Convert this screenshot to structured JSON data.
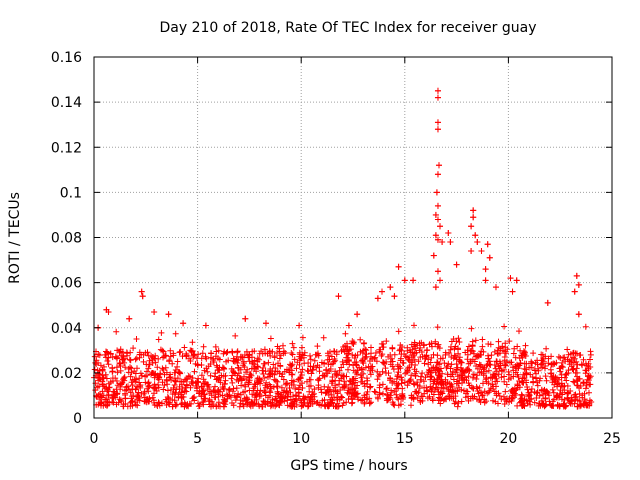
{
  "chart_data": {
    "type": "scatter",
    "title": "Day 210 of 2018, Rate Of TEC Index for receiver guay",
    "xlabel": "GPS time / hours",
    "ylabel": "ROTI / TECUs",
    "xlim": [
      0,
      25
    ],
    "ylim": [
      0,
      0.16
    ],
    "xticks": [
      0,
      5,
      10,
      15,
      20,
      25
    ],
    "yticks": [
      0,
      0.02,
      0.04,
      0.06,
      0.08,
      0.1,
      0.12,
      0.14,
      0.16
    ],
    "xtick_labels": [
      "0",
      "5",
      "10",
      "15",
      "20",
      "25"
    ],
    "ytick_labels": [
      "0",
      "0.02",
      "0.04",
      "0.06",
      "0.08",
      "0.1",
      "0.12",
      "0.14",
      "0.16"
    ],
    "grid": true,
    "marker": "+",
    "color": "#ff0000",
    "series": [
      {
        "name": "ROTI",
        "x_range": [
          0,
          24
        ],
        "typical_range": [
          0.005,
          0.03
        ],
        "points": [
          [
            16.6,
            0.145
          ],
          [
            16.6,
            0.142
          ],
          [
            16.6,
            0.131
          ],
          [
            16.6,
            0.128
          ],
          [
            16.65,
            0.112
          ],
          [
            16.6,
            0.108
          ],
          [
            16.55,
            0.1
          ],
          [
            16.6,
            0.094
          ],
          [
            16.5,
            0.09
          ],
          [
            16.6,
            0.088
          ],
          [
            16.7,
            0.085
          ],
          [
            16.5,
            0.081
          ],
          [
            16.6,
            0.079
          ],
          [
            16.8,
            0.078
          ],
          [
            16.4,
            0.072
          ],
          [
            16.6,
            0.065
          ],
          [
            16.7,
            0.061
          ],
          [
            16.5,
            0.058
          ],
          [
            18.3,
            0.092
          ],
          [
            18.3,
            0.089
          ],
          [
            18.2,
            0.085
          ],
          [
            18.4,
            0.081
          ],
          [
            18.5,
            0.078
          ],
          [
            18.2,
            0.074
          ],
          [
            17.1,
            0.082
          ],
          [
            17.2,
            0.078
          ],
          [
            17.5,
            0.068
          ],
          [
            18.7,
            0.074
          ],
          [
            19.0,
            0.077
          ],
          [
            19.1,
            0.071
          ],
          [
            18.9,
            0.066
          ],
          [
            18.9,
            0.061
          ],
          [
            19.4,
            0.058
          ],
          [
            20.1,
            0.062
          ],
          [
            20.4,
            0.061
          ],
          [
            20.2,
            0.056
          ],
          [
            23.3,
            0.063
          ],
          [
            23.4,
            0.059
          ],
          [
            23.2,
            0.056
          ],
          [
            23.4,
            0.046
          ],
          [
            21.9,
            0.051
          ],
          [
            15.0,
            0.061
          ],
          [
            14.7,
            0.067
          ],
          [
            14.3,
            0.058
          ],
          [
            14.5,
            0.054
          ],
          [
            13.9,
            0.056
          ],
          [
            13.7,
            0.053
          ],
          [
            15.4,
            0.061
          ],
          [
            2.3,
            0.056
          ],
          [
            2.35,
            0.054
          ],
          [
            0.6,
            0.048
          ],
          [
            0.7,
            0.047
          ],
          [
            2.9,
            0.047
          ],
          [
            1.7,
            0.044
          ],
          [
            3.6,
            0.046
          ],
          [
            4.3,
            0.042
          ],
          [
            11.8,
            0.054
          ],
          [
            12.7,
            0.046
          ],
          [
            12.3,
            0.041
          ],
          [
            7.3,
            0.044
          ],
          [
            8.3,
            0.042
          ],
          [
            9.9,
            0.041
          ],
          [
            5.4,
            0.041
          ],
          [
            0.2,
            0.04
          ]
        ]
      }
    ]
  }
}
